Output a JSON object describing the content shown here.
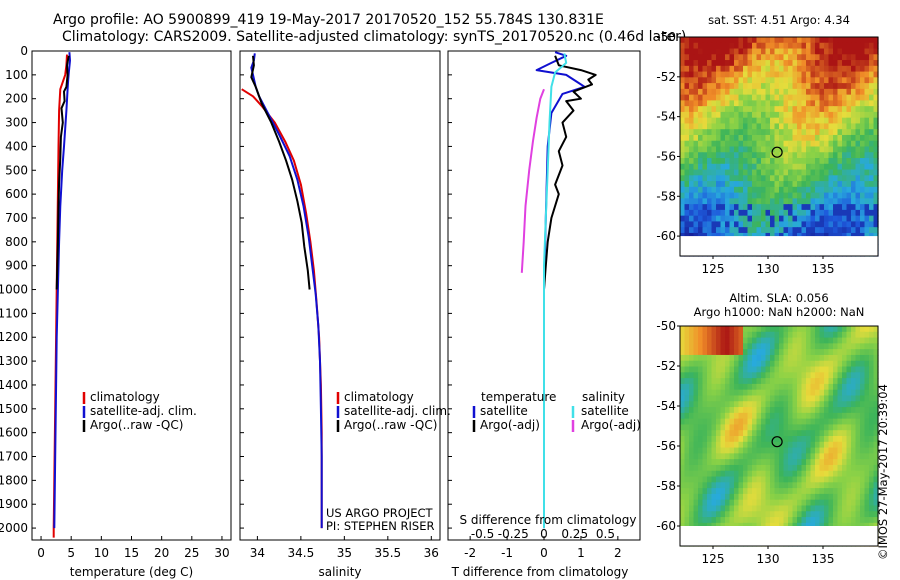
{
  "header": {
    "line1": "Argo profile: AO 5900899_419 19-May-2017 20170520_152 55.784S 130.831E",
    "line2": "Climatology: CARS2009. Satellite-adjusted climatology: synTS_20170520.nc (0.46d later)"
  },
  "colors": {
    "climatology": "#e00000",
    "satellite": "#1010d0",
    "argo": "#000000",
    "salinity_satellite": "#40e0e8",
    "salinity_argo": "#e040e0"
  },
  "chart_data": [
    {
      "id": "temperature",
      "type": "line",
      "xlabel": "temperature (deg C)",
      "ylabel": "",
      "xlim": [
        -1.5,
        31.5
      ],
      "ylim": [
        2050,
        0
      ],
      "xticks": [
        "0",
        "5",
        "10",
        "15",
        "20",
        "25",
        "30"
      ],
      "yticks": [
        "0",
        "100",
        "200",
        "300",
        "400",
        "500",
        "600",
        "700",
        "800",
        "900",
        "1000",
        "1100",
        "1200",
        "1300",
        "1400",
        "1500",
        "1600",
        "1700",
        "1800",
        "1900",
        "2000"
      ],
      "legend": [
        "climatology",
        "satellite-adj. clim.",
        "Argo(..raw -QC)"
      ],
      "series": [
        {
          "name": "climatology",
          "color": "climatology",
          "points": [
            [
              4.3,
              15
            ],
            [
              4.2,
              60
            ],
            [
              4.0,
              100
            ],
            [
              3.2,
              160
            ],
            [
              3.0,
              250
            ],
            [
              2.9,
              400
            ],
            [
              2.8,
              600
            ],
            [
              2.7,
              800
            ],
            [
              2.6,
              1000
            ],
            [
              2.5,
              1200
            ],
            [
              2.4,
              1400
            ],
            [
              2.3,
              1600
            ],
            [
              2.2,
              1800
            ],
            [
              2.1,
              2000
            ],
            [
              2.1,
              2040
            ]
          ]
        },
        {
          "name": "satellite-adj. clim.",
          "color": "satellite",
          "points": [
            [
              4.7,
              5
            ],
            [
              4.8,
              40
            ],
            [
              4.6,
              90
            ],
            [
              4.5,
              120
            ],
            [
              4.4,
              160
            ],
            [
              4.2,
              250
            ],
            [
              3.8,
              400
            ],
            [
              3.5,
              500
            ],
            [
              3.2,
              650
            ],
            [
              3.0,
              800
            ],
            [
              2.8,
              1000
            ],
            [
              2.6,
              1200
            ],
            [
              2.5,
              1400
            ],
            [
              2.4,
              1600
            ],
            [
              2.3,
              1800
            ],
            [
              2.2,
              2000
            ]
          ]
        },
        {
          "name": "Argo(..raw -QC)",
          "color": "argo",
          "points": [
            [
              4.6,
              20
            ],
            [
              4.3,
              60
            ],
            [
              4.4,
              100
            ],
            [
              4.2,
              150
            ],
            [
              3.8,
              170
            ],
            [
              3.9,
              210
            ],
            [
              3.4,
              240
            ],
            [
              3.6,
              300
            ],
            [
              3.3,
              360
            ],
            [
              3.2,
              450
            ],
            [
              3.0,
              550
            ],
            [
              2.9,
              650
            ],
            [
              2.8,
              800
            ],
            [
              2.7,
              900
            ],
            [
              2.6,
              1000
            ]
          ]
        }
      ]
    },
    {
      "id": "salinity",
      "type": "line",
      "xlabel": "salinity",
      "ylabel": "",
      "xlim": [
        33.8,
        36.1
      ],
      "ylim": [
        2050,
        0
      ],
      "xticks": [
        "34",
        "34.5",
        "35",
        "35.5",
        "36"
      ],
      "legend": [
        "climatology",
        "satellite-adj. clim.",
        "Argo(..raw -QC)"
      ],
      "annotation": [
        "US ARGO PROJECT",
        "PI: STEPHEN RISER"
      ],
      "series": [
        {
          "name": "climatology",
          "color": "climatology",
          "points": [
            [
              33.82,
              160
            ],
            [
              33.95,
              190
            ],
            [
              34.05,
              230
            ],
            [
              34.2,
              300
            ],
            [
              34.32,
              380
            ],
            [
              34.42,
              460
            ],
            [
              34.5,
              560
            ],
            [
              34.56,
              680
            ],
            [
              34.61,
              800
            ],
            [
              34.65,
              920
            ],
            [
              34.68,
              1050
            ],
            [
              34.71,
              1200
            ],
            [
              34.73,
              1400
            ],
            [
              34.74,
              1600
            ],
            [
              34.74,
              1800
            ],
            [
              34.74,
              2000
            ]
          ]
        },
        {
          "name": "satellite-adj. clim.",
          "color": "satellite",
          "points": [
            [
              33.97,
              10
            ],
            [
              33.96,
              40
            ],
            [
              33.93,
              70
            ],
            [
              33.95,
              100
            ],
            [
              33.98,
              150
            ],
            [
              34.02,
              190
            ],
            [
              34.12,
              260
            ],
            [
              34.25,
              350
            ],
            [
              34.37,
              440
            ],
            [
              34.46,
              540
            ],
            [
              34.53,
              650
            ],
            [
              34.59,
              780
            ],
            [
              34.63,
              900
            ],
            [
              34.67,
              1020
            ],
            [
              34.7,
              1150
            ],
            [
              34.72,
              1300
            ],
            [
              34.73,
              1500
            ],
            [
              34.74,
              1700
            ],
            [
              34.74,
              2000
            ]
          ]
        },
        {
          "name": "Argo(..raw -QC)",
          "color": "argo",
          "points": [
            [
              33.95,
              20
            ],
            [
              33.96,
              60
            ],
            [
              33.93,
              110
            ],
            [
              33.98,
              150
            ],
            [
              34.05,
              220
            ],
            [
              34.16,
              300
            ],
            [
              34.25,
              380
            ],
            [
              34.33,
              460
            ],
            [
              34.4,
              540
            ],
            [
              34.46,
              630
            ],
            [
              34.51,
              720
            ],
            [
              34.54,
              820
            ],
            [
              34.58,
              920
            ],
            [
              34.6,
              1000
            ]
          ]
        }
      ]
    },
    {
      "id": "difference",
      "type": "line",
      "xlabel": "T difference from climatology",
      "xlabel2": "S difference from climatology",
      "ylabel": "",
      "xlim": [
        -2.6,
        2.6
      ],
      "ylim": [
        2050,
        0
      ],
      "xticks": [
        "-2",
        "-1",
        "0",
        "1",
        "2"
      ],
      "xticks2": [
        "-0.5",
        "-0.25",
        "0",
        "0.25",
        "0.5"
      ],
      "legend_temperature": {
        "title": "temperature",
        "items": [
          "satellite",
          "Argo(-adj)"
        ]
      },
      "legend_salinity": {
        "title": "salinity",
        "items": [
          "satellite",
          "Argo(-adj)"
        ]
      },
      "series": [
        {
          "name": "T satellite",
          "color": "satellite",
          "points": [
            [
              0.3,
              5
            ],
            [
              0.6,
              20
            ],
            [
              0.2,
              50
            ],
            [
              -0.2,
              80
            ],
            [
              0.6,
              100
            ],
            [
              0.9,
              130
            ],
            [
              1.1,
              150
            ],
            [
              0.5,
              180
            ],
            [
              0.2,
              260
            ],
            [
              0.1,
              400
            ],
            [
              0.05,
              700
            ],
            [
              0.0,
              1000
            ],
            [
              0.0,
              1400
            ],
            [
              0.0,
              2000
            ]
          ]
        },
        {
          "name": "T Argo(-adj)",
          "color": "argo",
          "points": [
            [
              0.3,
              20
            ],
            [
              0.4,
              60
            ],
            [
              1.0,
              80
            ],
            [
              1.4,
              100
            ],
            [
              1.2,
              120
            ],
            [
              1.3,
              140
            ],
            [
              0.8,
              170
            ],
            [
              1.0,
              200
            ],
            [
              0.6,
              210
            ],
            [
              0.8,
              250
            ],
            [
              0.5,
              300
            ],
            [
              0.6,
              360
            ],
            [
              0.4,
              420
            ],
            [
              0.5,
              480
            ],
            [
              0.3,
              560
            ],
            [
              0.4,
              600
            ],
            [
              0.2,
              700
            ],
            [
              0.1,
              800
            ],
            [
              0.05,
              900
            ],
            [
              0.0,
              1000
            ]
          ]
        },
        {
          "name": "S satellite",
          "color": "salinity_satellite",
          "points": [
            [
              0.55,
              10
            ],
            [
              0.6,
              50
            ],
            [
              0.3,
              90
            ],
            [
              0.2,
              150
            ],
            [
              0.15,
              300
            ],
            [
              0.1,
              500
            ],
            [
              0.05,
              700
            ],
            [
              0.0,
              900
            ],
            [
              0.0,
              1200
            ],
            [
              0.0,
              1500
            ],
            [
              0.0,
              1800
            ],
            [
              0.0,
              2000
            ]
          ]
        },
        {
          "name": "S Argo(-adj)",
          "color": "salinity_argo",
          "points": [
            [
              0.0,
              160
            ],
            [
              -0.1,
              200
            ],
            [
              -0.2,
              280
            ],
            [
              -0.3,
              380
            ],
            [
              -0.4,
              500
            ],
            [
              -0.5,
              650
            ],
            [
              -0.55,
              800
            ],
            [
              -0.6,
              930
            ]
          ]
        }
      ]
    },
    {
      "id": "sst_map",
      "type": "heatmap",
      "title": "sat. SST: 4.51  Argo: 4.34",
      "xlim": [
        122,
        140
      ],
      "ylim": [
        -61,
        -50
      ],
      "xticks": [
        "125",
        "130",
        "135"
      ],
      "yticks": [
        "-50",
        "-52",
        "-54",
        "-56",
        "-58",
        "-60"
      ],
      "marker": {
        "lon": 130.831,
        "lat": -55.784
      }
    },
    {
      "id": "sla_map",
      "type": "heatmap",
      "title": "Altim. SLA: 0.056",
      "subtitle": "Argo h1000: NaN h2000: NaN",
      "xlim": [
        122,
        140
      ],
      "ylim": [
        -61,
        -50
      ],
      "xticks": [
        "125",
        "130",
        "135"
      ],
      "yticks": [
        "-50",
        "-52",
        "-54",
        "-56",
        "-58",
        "-60"
      ],
      "marker": {
        "lon": 130.831,
        "lat": -55.784
      }
    }
  ],
  "side_text": "©IMOS 27-May-2017 20:39:04"
}
